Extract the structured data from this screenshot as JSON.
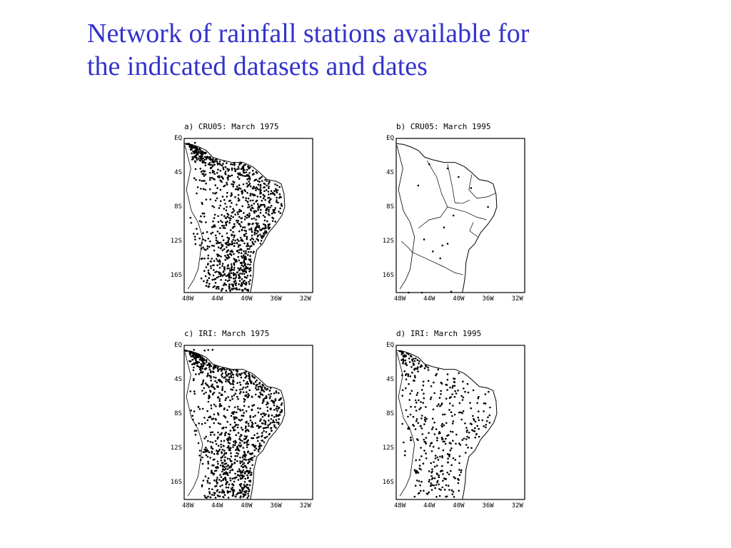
{
  "slide": {
    "title_line1": "Network of rainfall stations available for",
    "title_line2": "the indicated datasets and dates",
    "title_color": "#3333cc"
  },
  "axes": {
    "lat_labels": [
      "EQ",
      "4S",
      "8S",
      "12S",
      "16S"
    ],
    "lon_labels": [
      "48W",
      "44W",
      "40W",
      "36W",
      "32W"
    ],
    "lat_range": [
      -18,
      0
    ],
    "lon_range": [
      -48.5,
      -31
    ]
  },
  "panels": [
    {
      "id": "a",
      "title": "a) CRU05: March 1975",
      "density": "very-high",
      "show_states": false
    },
    {
      "id": "b",
      "title": "b) CRU05: March 1995",
      "density": "very-low",
      "show_states": true
    },
    {
      "id": "c",
      "title": "c) IRI: March 1975",
      "density": "very-high",
      "show_states": false
    },
    {
      "id": "d",
      "title": "d) IRI: March 1995",
      "density": "medium",
      "show_states": false
    }
  ]
}
